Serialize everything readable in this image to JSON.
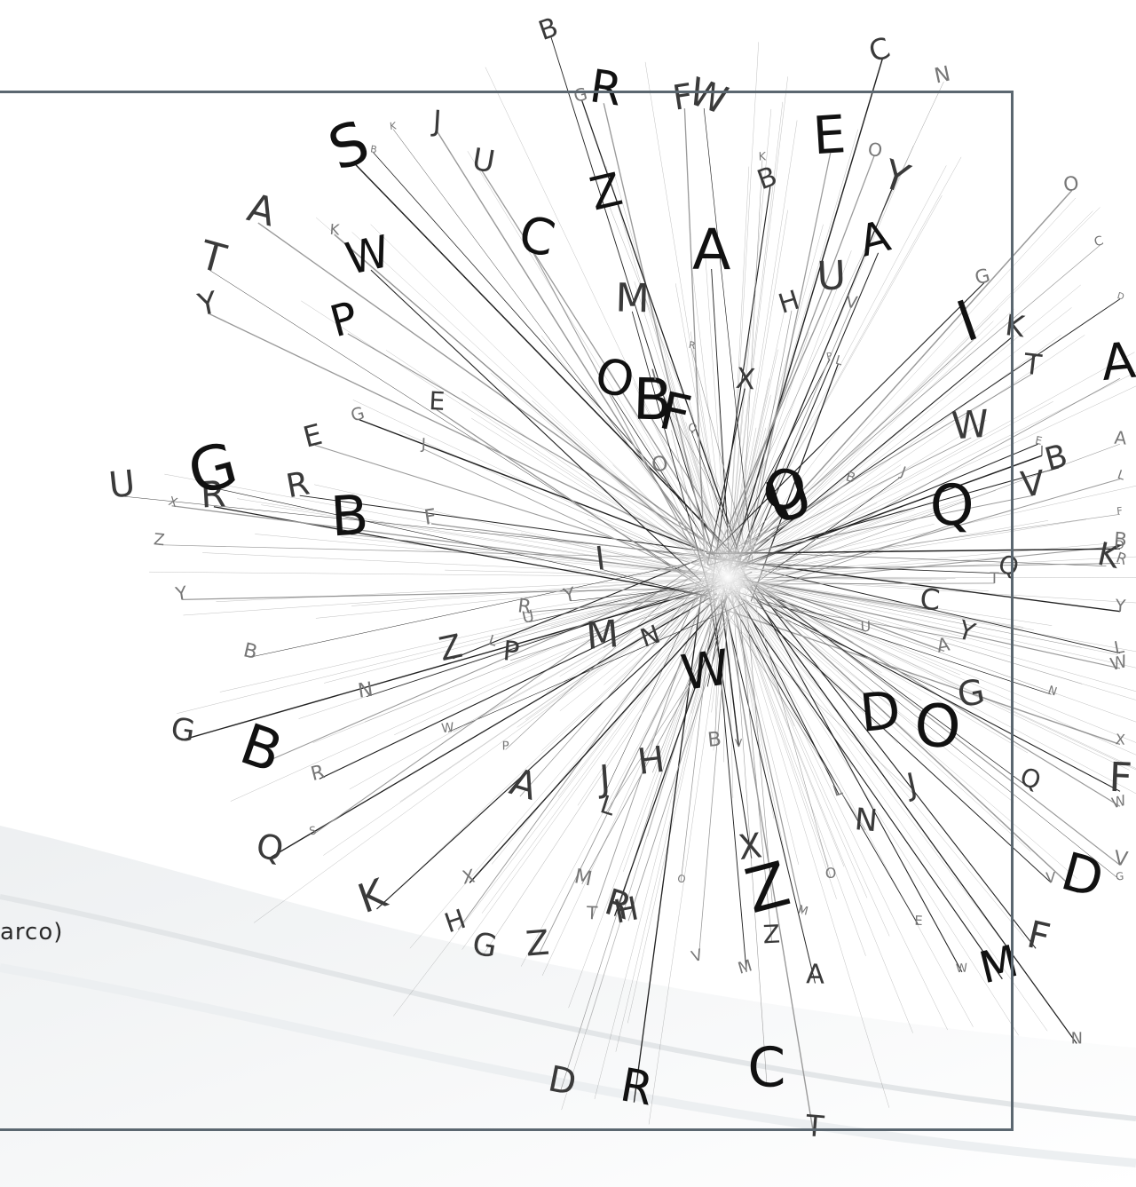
{
  "artwork": {
    "caption": "arco)",
    "footer_text": "",
    "letters": [
      "C",
      "W",
      "Y",
      "L",
      "A",
      "G",
      "U",
      "W",
      "F",
      "N",
      "X",
      "V",
      "O",
      "D",
      "G",
      "Q",
      "J",
      "V",
      "D",
      "F",
      "N",
      "M",
      "L",
      "W",
      "O",
      "E",
      "M",
      "N",
      "Z",
      "T",
      "X",
      "A",
      "V",
      "B",
      "C",
      "M",
      "Z",
      "R",
      "W",
      "H",
      "V",
      "O",
      "D",
      "H",
      "J",
      "T",
      "R",
      "M",
      "Z",
      "L",
      "G",
      "N",
      "H",
      "K",
      "X",
      "A",
      "W",
      "Q",
      "M",
      "P",
      "S",
      "R",
      "Z",
      "G",
      "B",
      "Y",
      "R",
      "P",
      "N",
      "L",
      "B",
      "U",
      "Y",
      "U",
      "Z",
      "R",
      "X",
      "B",
      "G",
      "I",
      "R",
      "E",
      "F",
      "T",
      "Y",
      "J",
      "G",
      "P",
      "A",
      "K",
      "E",
      "S",
      "W",
      "K",
      "B",
      "J",
      "O",
      "U",
      "B",
      "C",
      "F",
      "O",
      "B",
      "R",
      "G",
      "M",
      "Z",
      "F",
      "I",
      "Q",
      "W",
      "A",
      "R",
      "B",
      "K",
      "E",
      "C",
      "O",
      "X",
      "Y",
      "H",
      "A",
      "U",
      "P",
      "V",
      "N",
      "L",
      "G",
      "U",
      "Q",
      "C",
      "K",
      "I",
      "O",
      "D",
      "B",
      "T",
      "W",
      "A",
      "E",
      "J",
      "B",
      "I",
      "V",
      "L",
      "Q",
      "F",
      "A",
      "B",
      "Y",
      "K",
      "T",
      "Q",
      "D",
      "R"
    ],
    "colors": {
      "ink": "#111111",
      "mid": "#555555",
      "light": "#bbbbbb",
      "frame": "#5b6770"
    }
  }
}
